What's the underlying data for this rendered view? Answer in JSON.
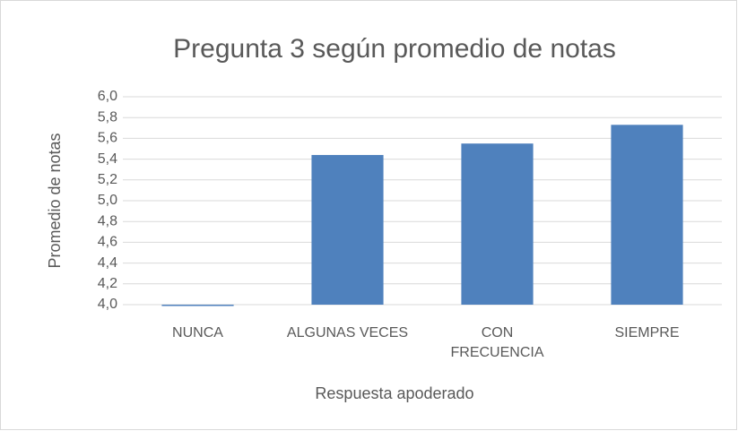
{
  "chart_data": {
    "type": "bar",
    "title": "Pregunta 3 según promedio de notas",
    "xlabel": "Respuesta apoderado",
    "ylabel": "Promedio de notas",
    "categories": [
      "NUNCA",
      "ALGUNAS VECES",
      "CON FRECUENCIA",
      "SIEMPRE"
    ],
    "values": [
      4.0,
      5.44,
      5.55,
      5.73
    ],
    "color": "#4f81bd",
    "ylim": [
      4.0,
      6.0
    ],
    "yticks": [
      {
        "value": 4.0,
        "label": "4,0"
      },
      {
        "value": 4.2,
        "label": "4,2"
      },
      {
        "value": 4.4,
        "label": "4,4"
      },
      {
        "value": 4.6,
        "label": "4,6"
      },
      {
        "value": 4.8,
        "label": "4,8"
      },
      {
        "value": 5.0,
        "label": "5,0"
      },
      {
        "value": 5.2,
        "label": "5,2"
      },
      {
        "value": 5.4,
        "label": "5,4"
      },
      {
        "value": 5.6,
        "label": "5,6"
      },
      {
        "value": 5.8,
        "label": "5,8"
      },
      {
        "value": 6.0,
        "label": "6,0"
      }
    ],
    "grid": true
  }
}
